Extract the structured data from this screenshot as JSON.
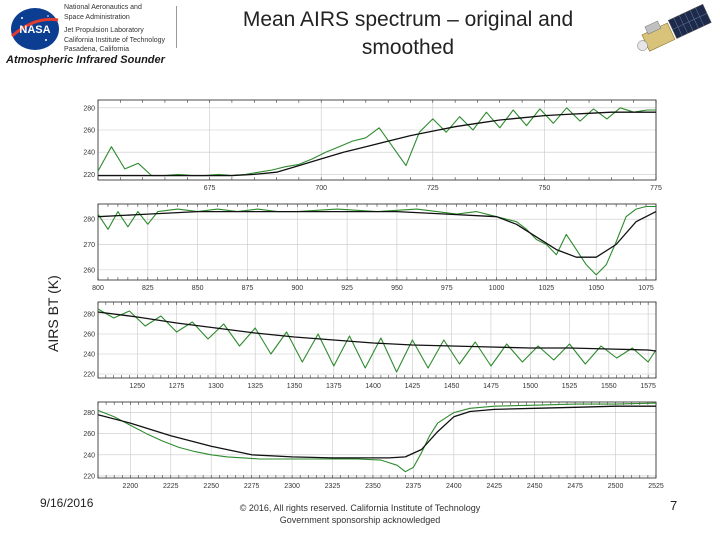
{
  "header": {
    "org_lines": [
      "National Aeronautics and",
      "Space Administration",
      "Jet Propulsion Laboratory",
      "California Institute of Technology",
      "Pasadena, California"
    ],
    "team": "Atmospheric Infrared Sounder",
    "logo_text": "NASA"
  },
  "title_lines": [
    "Mean AIRS spectrum – original and",
    "smoothed"
  ],
  "ylabel": "AIRS BT (K)",
  "footer": {
    "date": "9/16/2016",
    "copyright": [
      "© 2016, All rights reserved. California Institute of Technology",
      "Government sponsorship acknowledged"
    ],
    "page": "7"
  },
  "colors": {
    "original": "#2e8b2e",
    "smoothed": "#111111",
    "grid": "#c8c8c8"
  },
  "chart_data": [
    {
      "type": "line",
      "xlim": [
        650,
        775
      ],
      "ylim": [
        215,
        287
      ],
      "xticks": [
        675,
        700,
        725,
        750,
        775
      ],
      "yticks": [
        220,
        240,
        260,
        280
      ],
      "grid": true,
      "series": [
        {
          "x": [
            650,
            655,
            660,
            665,
            670,
            675,
            680,
            685,
            690,
            695,
            700,
            705,
            710,
            715,
            720,
            725,
            730,
            735,
            740,
            745,
            750,
            755,
            760,
            765,
            770,
            775
          ],
          "values": [
            219,
            219,
            219,
            219,
            219,
            219,
            219,
            220,
            222,
            228,
            234,
            240,
            245,
            250,
            255,
            259,
            263,
            266,
            269,
            271,
            273,
            274,
            275,
            276,
            276,
            276
          ]
        },
        {
          "x": [
            650,
            653,
            656,
            659,
            662,
            665,
            668,
            671,
            674,
            677,
            680,
            683,
            686,
            689,
            692,
            695,
            698,
            701,
            704,
            707,
            710,
            713,
            716,
            719,
            722,
            725,
            728,
            731,
            734,
            737,
            740,
            743,
            746,
            749,
            752,
            755,
            758,
            761,
            764,
            767,
            770,
            773,
            775
          ],
          "values": [
            223,
            245,
            225,
            230,
            219,
            219,
            220,
            219,
            219,
            220,
            219,
            220,
            222,
            224,
            227,
            229,
            234,
            240,
            245,
            250,
            253,
            262,
            245,
            228,
            258,
            270,
            258,
            272,
            260,
            276,
            262,
            278,
            264,
            279,
            266,
            280,
            268,
            279,
            270,
            280,
            276,
            278,
            278
          ]
        }
      ]
    },
    {
      "type": "line",
      "xlim": [
        800,
        1080
      ],
      "ylim": [
        256,
        286
      ],
      "xticks": [
        800,
        825,
        850,
        875,
        900,
        925,
        950,
        975,
        1000,
        1025,
        1050,
        1075
      ],
      "yticks": [
        260,
        270,
        280
      ],
      "grid": true,
      "series": [
        {
          "x": [
            800,
            825,
            850,
            875,
            900,
            925,
            950,
            975,
            1000,
            1010,
            1020,
            1030,
            1040,
            1050,
            1060,
            1070,
            1080
          ],
          "values": [
            281,
            282,
            283,
            283,
            283,
            283,
            283,
            282,
            281,
            278,
            273,
            268,
            265,
            265,
            270,
            279,
            283
          ]
        },
        {
          "x": [
            800,
            805,
            810,
            815,
            820,
            825,
            830,
            840,
            850,
            860,
            870,
            880,
            890,
            900,
            920,
            940,
            960,
            980,
            990,
            1000,
            1010,
            1015,
            1020,
            1025,
            1030,
            1035,
            1040,
            1045,
            1050,
            1055,
            1060,
            1065,
            1070,
            1075,
            1080
          ],
          "values": [
            282,
            276,
            283,
            277,
            283,
            278,
            283,
            284,
            283,
            284,
            283,
            284,
            283,
            283,
            284,
            283,
            284,
            282,
            283,
            281,
            279,
            276,
            272,
            270,
            266,
            274,
            268,
            262,
            258,
            262,
            271,
            281,
            284,
            285,
            285
          ]
        }
      ]
    },
    {
      "type": "line",
      "xlim": [
        1225,
        1580
      ],
      "ylim": [
        216,
        292
      ],
      "xticks": [
        1250,
        1275,
        1300,
        1325,
        1350,
        1375,
        1400,
        1425,
        1450,
        1475,
        1500,
        1525,
        1550,
        1575
      ],
      "yticks": [
        220,
        240,
        260,
        280
      ],
      "grid": true,
      "series": [
        {
          "x": [
            1225,
            1250,
            1275,
            1300,
            1325,
            1350,
            1375,
            1400,
            1425,
            1450,
            1475,
            1500,
            1525,
            1550,
            1575,
            1580
          ],
          "values": [
            282,
            277,
            271,
            266,
            261,
            257,
            254,
            251,
            249,
            248,
            247,
            246,
            246,
            245,
            244,
            243
          ]
        },
        {
          "x": [
            1225,
            1235,
            1245,
            1255,
            1265,
            1275,
            1285,
            1295,
            1305,
            1315,
            1325,
            1335,
            1345,
            1355,
            1365,
            1375,
            1385,
            1395,
            1405,
            1415,
            1425,
            1435,
            1445,
            1455,
            1465,
            1475,
            1485,
            1495,
            1505,
            1515,
            1525,
            1535,
            1545,
            1555,
            1565,
            1575,
            1580
          ],
          "values": [
            285,
            276,
            283,
            268,
            278,
            262,
            272,
            255,
            270,
            248,
            266,
            240,
            262,
            232,
            260,
            228,
            258,
            226,
            256,
            222,
            254,
            226,
            254,
            230,
            252,
            228,
            250,
            232,
            248,
            234,
            250,
            230,
            248,
            236,
            246,
            232,
            244
          ]
        }
      ]
    },
    {
      "type": "line",
      "xlim": [
        2180,
        2525
      ],
      "ylim": [
        218,
        290
      ],
      "xticks": [
        2200,
        2225,
        2250,
        2275,
        2300,
        2325,
        2350,
        2375,
        2400,
        2425,
        2450,
        2475,
        2500,
        2525
      ],
      "yticks": [
        220,
        240,
        260,
        280
      ],
      "grid": true,
      "series": [
        {
          "x": [
            2180,
            2200,
            2225,
            2250,
            2275,
            2300,
            2325,
            2350,
            2360,
            2370,
            2380,
            2390,
            2400,
            2410,
            2425,
            2450,
            2475,
            2500,
            2525
          ],
          "values": [
            278,
            270,
            258,
            248,
            240,
            238,
            237,
            237,
            237,
            238,
            245,
            262,
            276,
            281,
            283,
            284,
            285,
            286,
            286
          ]
        },
        {
          "x": [
            2180,
            2190,
            2200,
            2210,
            2220,
            2230,
            2240,
            2250,
            2260,
            2270,
            2280,
            2290,
            2300,
            2320,
            2340,
            2355,
            2365,
            2370,
            2375,
            2380,
            2385,
            2390,
            2400,
            2410,
            2425,
            2450,
            2475,
            2500,
            2525
          ],
          "values": [
            282,
            276,
            268,
            260,
            253,
            247,
            243,
            240,
            238,
            237,
            236,
            236,
            236,
            236,
            236,
            235,
            230,
            224,
            228,
            242,
            258,
            270,
            280,
            284,
            286,
            287,
            288,
            288,
            289
          ]
        }
      ]
    }
  ]
}
